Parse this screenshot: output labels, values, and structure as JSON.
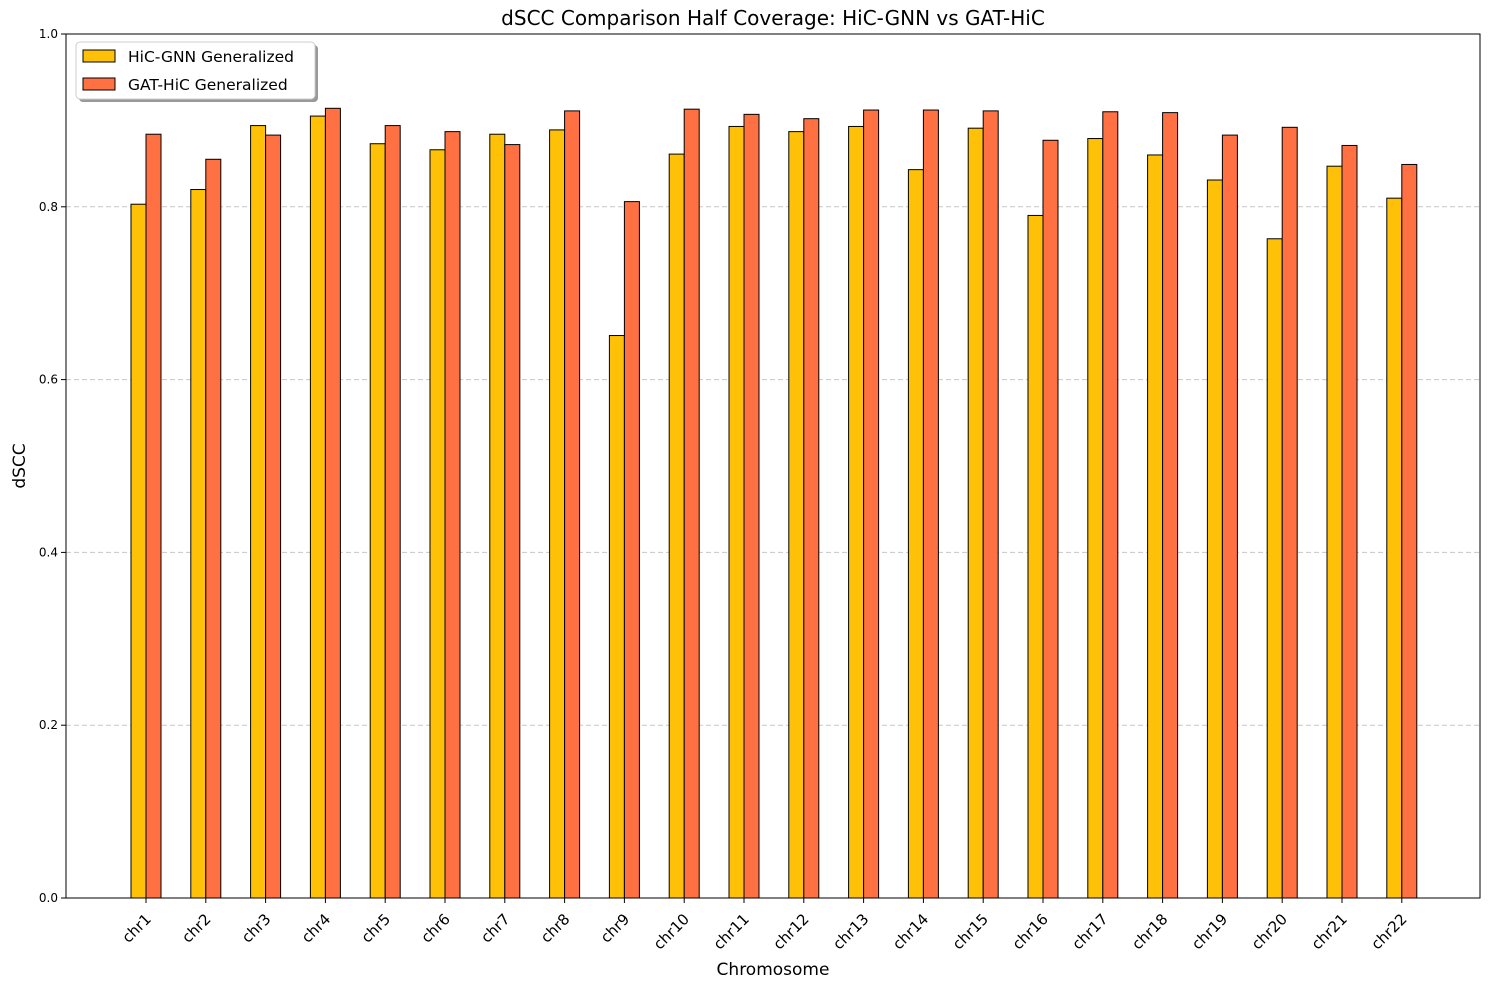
{
  "chart_data": {
    "type": "bar",
    "title": "dSCC Comparison Half Coverage: HiC-GNN vs GAT-HiC",
    "xlabel": "Chromosome",
    "ylabel": "dSCC",
    "ylim": [
      0,
      1.0
    ],
    "yticks": [
      "0.0",
      "0.2",
      "0.4",
      "0.6",
      "0.8",
      "1.0"
    ],
    "grid": "horizontal dashed",
    "legend_position": "top-left",
    "categories": [
      "chr1",
      "chr2",
      "chr3",
      "chr4",
      "chr5",
      "chr6",
      "chr7",
      "chr8",
      "chr9",
      "chr10",
      "chr11",
      "chr12",
      "chr13",
      "chr14",
      "chr15",
      "chr16",
      "chr17",
      "chr18",
      "chr19",
      "chr20",
      "chr21",
      "chr22"
    ],
    "series": [
      {
        "name": "HiC-GNN Generalized",
        "color": "#FFC107",
        "values": [
          0.803,
          0.82,
          0.894,
          0.905,
          0.873,
          0.866,
          0.884,
          0.889,
          0.651,
          0.861,
          0.893,
          0.887,
          0.893,
          0.843,
          0.891,
          0.79,
          0.879,
          0.86,
          0.831,
          0.763,
          0.847,
          0.81
        ]
      },
      {
        "name": "GAT-HiC Generalized",
        "color": "#FF7043",
        "values": [
          0.884,
          0.855,
          0.883,
          0.914,
          0.894,
          0.887,
          0.872,
          0.911,
          0.806,
          0.913,
          0.907,
          0.902,
          0.912,
          0.912,
          0.911,
          0.877,
          0.91,
          0.909,
          0.883,
          0.892,
          0.871,
          0.849
        ]
      }
    ]
  }
}
